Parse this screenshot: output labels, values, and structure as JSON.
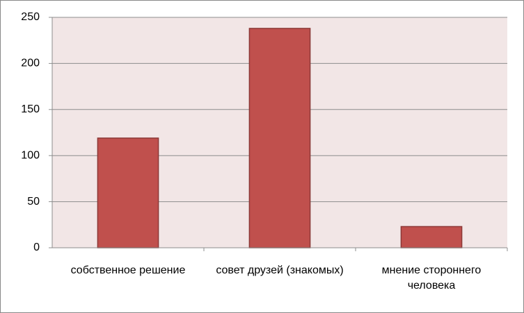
{
  "chart_data": {
    "type": "bar",
    "categories": [
      "собственное решение",
      "совет друзей (знакомых)",
      "мнение стороннего человека"
    ],
    "values": [
      119,
      238,
      23
    ],
    "color": "#c0504d",
    "ylim": [
      0,
      250
    ],
    "yticks": [
      0,
      50,
      100,
      150,
      200,
      250
    ],
    "grid": true
  }
}
